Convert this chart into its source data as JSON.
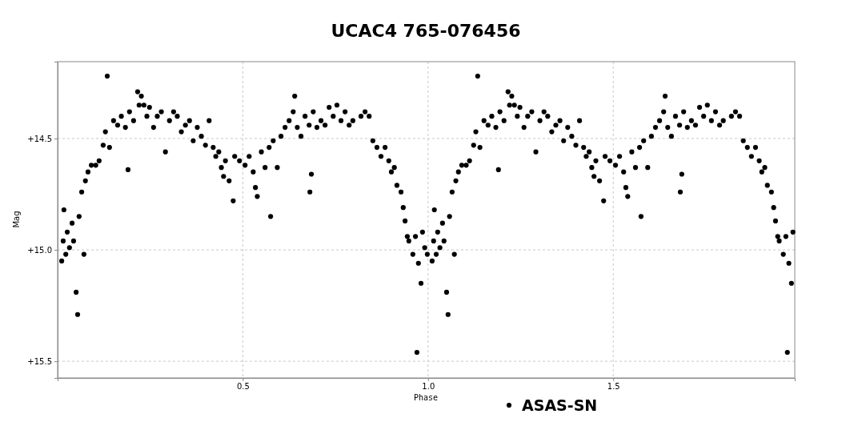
{
  "chart_data": {
    "type": "scatter",
    "title": "UCAC4 765-076456",
    "xlabel": "Phase",
    "ylabel": "Mag",
    "xlim": [
      0.0,
      1.99
    ],
    "ylim": [
      15.575,
      14.155
    ],
    "xticks": [
      0.5,
      {
        "value": 1,
        "label": "1.0"
      },
      1.5
    ],
    "yticks": [
      {
        "value": 14.5,
        "label": "+14.5"
      },
      {
        "value": 15,
        "label": "+15.0"
      },
      {
        "value": 15.5,
        "label": "+15.5"
      }
    ],
    "grid": true,
    "legend": "bottom",
    "marker": "circle",
    "series": [
      {
        "name": "ASAS-SN",
        "color": "#000000",
        "x": [
          0.011,
          0.017,
          0.015,
          0.022,
          0.026,
          0.032,
          0.039,
          0.043,
          0.05,
          0.054,
          0.058,
          0.065,
          0.071,
          0.075,
          0.082,
          0.091,
          0.103,
          0.112,
          0.123,
          0.129,
          0.134,
          0.14,
          0.151,
          0.162,
          0.172,
          0.183,
          0.19,
          0.194,
          0.205,
          0.216,
          0.22,
          0.226,
          0.233,
          0.241,
          0.248,
          0.259,
          0.269,
          0.28,
          0.291,
          0.302,
          0.313,
          0.323,
          0.334,
          0.345,
          0.356,
          0.366,
          0.377,
          0.388,
          0.399,
          0.409,
          0.42,
          0.427,
          0.435,
          0.442,
          0.448,
          0.453,
          0.463,
          0.474,
          0.478,
          0.491,
          0.506,
          0.517,
          0.528,
          0.534,
          0.539,
          0.55,
          0.56,
          0.571,
          0.575,
          0.582,
          0.593,
          0.603,
          0.614,
          0.625,
          0.636,
          0.64,
          0.647,
          0.657,
          0.668,
          0.679,
          0.681,
          0.685,
          0.69,
          0.7,
          0.711,
          0.722,
          0.733,
          0.744,
          0.754,
          0.765,
          0.776,
          0.787,
          0.797,
          0.819,
          0.83,
          0.841,
          0.851,
          0.862,
          0.873,
          0.884,
          0.894,
          0.901,
          0.909,
          0.916,
          0.927,
          0.933,
          0.938,
          0.944,
          0.948,
          0.959,
          0.966,
          0.97,
          0.974,
          0.981,
          0.985,
          0.991,
          0.998,
          1.011,
          1.017,
          1.015,
          1.022,
          1.026,
          1.032,
          1.039,
          1.043,
          1.05,
          1.054,
          1.058,
          1.065,
          1.071,
          1.075,
          1.082,
          1.091,
          1.103,
          1.112,
          1.123,
          1.129,
          1.134,
          1.14,
          1.151,
          1.162,
          1.172,
          1.183,
          1.19,
          1.194,
          1.205,
          1.216,
          1.22,
          1.226,
          1.233,
          1.241,
          1.248,
          1.259,
          1.269,
          1.28,
          1.291,
          1.302,
          1.313,
          1.323,
          1.334,
          1.345,
          1.356,
          1.366,
          1.377,
          1.388,
          1.399,
          1.409,
          1.42,
          1.427,
          1.435,
          1.442,
          1.448,
          1.453,
          1.463,
          1.474,
          1.478,
          1.491,
          1.506,
          1.517,
          1.528,
          1.534,
          1.539,
          1.55,
          1.56,
          1.571,
          1.575,
          1.582,
          1.593,
          1.603,
          1.614,
          1.625,
          1.636,
          1.64,
          1.647,
          1.657,
          1.668,
          1.679,
          1.681,
          1.685,
          1.69,
          1.7,
          1.711,
          1.722,
          1.733,
          1.744,
          1.754,
          1.765,
          1.776,
          1.787,
          1.797,
          1.819,
          1.83,
          1.841,
          1.851,
          1.862,
          1.873,
          1.884,
          1.894,
          1.901,
          1.909,
          1.916,
          1.927,
          1.933,
          1.938,
          1.944,
          1.948,
          1.959,
          1.966,
          1.97,
          1.974,
          1.981,
          1.985
        ],
        "values": [
          15.05,
          14.82,
          14.96,
          15.02,
          14.92,
          14.99,
          14.88,
          14.96,
          15.19,
          15.29,
          14.85,
          14.74,
          15.02,
          14.69,
          14.65,
          14.62,
          14.62,
          14.6,
          14.53,
          14.47,
          14.22,
          14.54,
          14.42,
          14.44,
          14.4,
          14.45,
          14.64,
          14.38,
          14.42,
          14.29,
          14.35,
          14.31,
          14.35,
          14.4,
          14.36,
          14.45,
          14.4,
          14.38,
          14.56,
          14.42,
          14.38,
          14.4,
          14.47,
          14.44,
          14.42,
          14.51,
          14.45,
          14.49,
          14.53,
          14.42,
          14.54,
          14.58,
          14.56,
          14.63,
          14.67,
          14.6,
          14.69,
          14.78,
          14.58,
          14.6,
          14.62,
          14.58,
          14.65,
          14.72,
          14.76,
          14.56,
          14.63,
          14.54,
          14.85,
          14.51,
          14.63,
          14.49,
          14.45,
          14.42,
          14.38,
          14.31,
          14.45,
          14.49,
          14.4,
          14.44,
          14.74,
          14.66,
          14.38,
          14.45,
          14.42,
          14.44,
          14.36,
          14.4,
          14.35,
          14.42,
          14.38,
          14.44,
          14.42,
          14.4,
          14.38,
          14.4,
          14.51,
          14.54,
          14.58,
          14.54,
          14.6,
          14.65,
          14.63,
          14.71,
          14.74,
          14.81,
          14.87,
          14.94,
          14.96,
          15.02,
          14.94,
          15.46,
          15.06,
          15.15,
          14.92,
          14.99,
          15.02,
          15.05,
          14.82,
          14.96,
          15.02,
          14.92,
          14.99,
          14.88,
          14.96,
          15.19,
          15.29,
          14.85,
          14.74,
          15.02,
          14.69,
          14.65,
          14.62,
          14.62,
          14.6,
          14.53,
          14.47,
          14.22,
          14.54,
          14.42,
          14.44,
          14.4,
          14.45,
          14.64,
          14.38,
          14.42,
          14.29,
          14.35,
          14.31,
          14.35,
          14.4,
          14.36,
          14.45,
          14.4,
          14.38,
          14.56,
          14.42,
          14.38,
          14.4,
          14.47,
          14.44,
          14.42,
          14.51,
          14.45,
          14.49,
          14.53,
          14.42,
          14.54,
          14.58,
          14.56,
          14.63,
          14.67,
          14.6,
          14.69,
          14.78,
          14.58,
          14.6,
          14.62,
          14.58,
          14.65,
          14.72,
          14.76,
          14.56,
          14.63,
          14.54,
          14.85,
          14.51,
          14.63,
          14.49,
          14.45,
          14.42,
          14.38,
          14.31,
          14.45,
          14.49,
          14.4,
          14.44,
          14.74,
          14.66,
          14.38,
          14.45,
          14.42,
          14.44,
          14.36,
          14.4,
          14.35,
          14.42,
          14.38,
          14.44,
          14.42,
          14.4,
          14.38,
          14.4,
          14.51,
          14.54,
          14.58,
          14.54,
          14.6,
          14.65,
          14.63,
          14.71,
          14.74,
          14.81,
          14.87,
          14.94,
          14.96,
          15.02,
          14.94,
          15.46,
          15.06,
          15.15,
          14.92
        ]
      }
    ]
  }
}
